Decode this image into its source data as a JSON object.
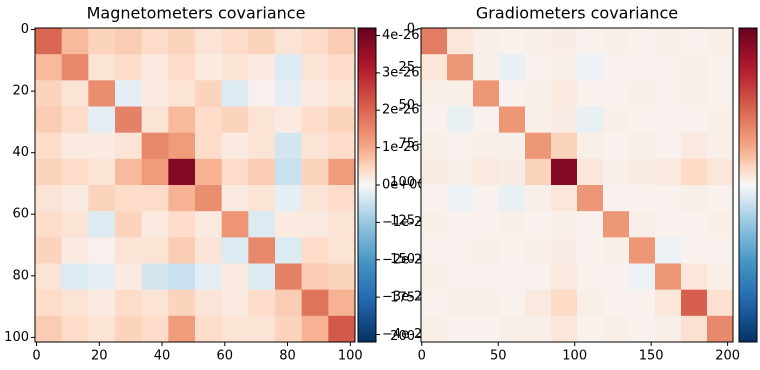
{
  "chart_data": [
    {
      "type": "heatmap",
      "title": "Magnetometers covariance",
      "xlim": [
        -0.5,
        101.5
      ],
      "ylim": [
        101.5,
        -0.5
      ],
      "xticks": [
        0,
        20,
        40,
        60,
        80,
        100
      ],
      "yticks": [
        0,
        20,
        40,
        60,
        80,
        100
      ],
      "clim": [
        -4.2e-26,
        4.2e-26
      ],
      "cticks": [
        {
          "value": 4e-26,
          "label": "4e-26"
        },
        {
          "value": 3e-26,
          "label": "3e-26"
        },
        {
          "value": 2e-26,
          "label": "2e-26"
        },
        {
          "value": 1e-26,
          "label": "1e-26"
        },
        {
          "value": 0,
          "label": "0e+00"
        },
        {
          "value": -1e-26,
          "label": "−1e-26"
        },
        {
          "value": -2e-26,
          "label": "−2e-26"
        },
        {
          "value": -3e-26,
          "label": "−3e-26"
        },
        {
          "value": -4e-26,
          "label": "−4e-26"
        }
      ],
      "colormap": "RdBu_r",
      "matrix": [
        [
          2e-26,
          8e-27,
          5e-27,
          6e-27,
          4e-27,
          5e-27,
          3e-27,
          4e-27,
          5e-27,
          3e-27,
          4e-27,
          6e-27
        ],
        [
          8e-27,
          1.5e-26,
          3e-27,
          4e-27,
          2e-27,
          4e-27,
          2e-27,
          3e-27,
          2e-27,
          -3e-27,
          3e-27,
          4e-27
        ],
        [
          5e-27,
          3e-27,
          1.4e-26,
          -2e-27,
          2e-27,
          3e-27,
          5e-27,
          -3e-27,
          1e-27,
          -2e-27,
          2e-27,
          3e-27
        ],
        [
          6e-27,
          4e-27,
          -2e-27,
          1.6e-26,
          3e-27,
          8e-27,
          4e-27,
          5e-27,
          3e-27,
          2e-27,
          4e-27,
          5e-27
        ],
        [
          4e-27,
          2e-27,
          2e-27,
          3e-27,
          1.5e-26,
          1.2e-26,
          4e-27,
          2e-27,
          3e-27,
          -4e-27,
          3e-27,
          4e-27
        ],
        [
          5e-27,
          4e-27,
          3e-27,
          8e-27,
          1.2e-26,
          3.8e-26,
          9e-27,
          4e-27,
          6e-27,
          -5e-27,
          5e-27,
          1.2e-26
        ],
        [
          3e-27,
          2e-27,
          5e-27,
          4e-27,
          4e-27,
          9e-27,
          1.4e-26,
          2e-27,
          3e-27,
          -2e-27,
          3e-27,
          4e-27
        ],
        [
          4e-27,
          3e-27,
          -3e-27,
          5e-27,
          2e-27,
          4e-27,
          2e-27,
          1.3e-26,
          -3e-27,
          2e-27,
          2e-27,
          3e-27
        ],
        [
          5e-27,
          2e-27,
          1e-27,
          3e-27,
          3e-27,
          6e-27,
          3e-27,
          -3e-27,
          1.5e-26,
          -3e-27,
          4e-27,
          3e-27
        ],
        [
          3e-27,
          -3e-27,
          -2e-27,
          2e-27,
          -4e-27,
          -5e-27,
          -2e-27,
          2e-27,
          -3e-27,
          1.6e-26,
          6e-27,
          5e-27
        ],
        [
          4e-27,
          3e-27,
          2e-27,
          4e-27,
          3e-27,
          5e-27,
          3e-27,
          2e-27,
          4e-27,
          6e-27,
          1.8e-26,
          9e-27
        ],
        [
          6e-27,
          4e-27,
          3e-27,
          5e-27,
          4e-27,
          1.2e-26,
          4e-27,
          3e-27,
          3e-27,
          5e-27,
          9e-27,
          2.2e-26
        ]
      ]
    },
    {
      "type": "heatmap",
      "title": "Gradiometers covariance",
      "xlim": [
        -0.5,
        203.5
      ],
      "ylim": [
        203.5,
        -0.5
      ],
      "xticks": [
        0,
        50,
        100,
        150,
        200
      ],
      "yticks": [
        0,
        25,
        50,
        75,
        100,
        125,
        150,
        175,
        200
      ],
      "clim": [
        -1,
        1
      ],
      "colormap": "RdBu_r",
      "matrix": [
        [
          0.4,
          0.06,
          0.03,
          0.02,
          0.03,
          0.04,
          0.02,
          0.03,
          0.02,
          0.03,
          0.02,
          0.03
        ],
        [
          0.06,
          0.3,
          0.03,
          -0.04,
          0.02,
          0.03,
          -0.03,
          0.02,
          0.02,
          0.02,
          0.03,
          0.02
        ],
        [
          0.03,
          0.03,
          0.3,
          0.02,
          0.03,
          0.05,
          0.02,
          0.02,
          0.03,
          0.02,
          0.03,
          0.02
        ],
        [
          0.02,
          -0.04,
          0.02,
          0.3,
          0.03,
          0.04,
          -0.04,
          0.03,
          0.02,
          0.02,
          0.02,
          0.03
        ],
        [
          0.03,
          0.02,
          0.03,
          0.03,
          0.3,
          0.12,
          0.03,
          0.02,
          0.03,
          0.02,
          0.05,
          0.03
        ],
        [
          0.04,
          0.03,
          0.05,
          0.04,
          0.12,
          0.9,
          0.06,
          0.03,
          0.04,
          0.05,
          0.1,
          0.06
        ],
        [
          0.02,
          -0.03,
          0.02,
          -0.04,
          0.03,
          0.06,
          0.3,
          0.02,
          0.02,
          0.02,
          0.03,
          0.02
        ],
        [
          0.03,
          0.02,
          0.02,
          0.03,
          0.02,
          0.03,
          0.02,
          0.3,
          0.03,
          0.02,
          0.02,
          0.03
        ],
        [
          0.02,
          0.02,
          0.03,
          0.02,
          0.03,
          0.04,
          0.02,
          0.03,
          0.3,
          -0.03,
          0.02,
          0.02
        ],
        [
          0.03,
          0.02,
          0.02,
          0.02,
          0.02,
          0.05,
          0.02,
          0.02,
          -0.03,
          0.3,
          0.06,
          0.03
        ],
        [
          0.02,
          0.03,
          0.03,
          0.02,
          0.05,
          0.1,
          0.03,
          0.02,
          0.02,
          0.06,
          0.5,
          0.08
        ],
        [
          0.03,
          0.02,
          0.02,
          0.03,
          0.03,
          0.06,
          0.02,
          0.03,
          0.02,
          0.03,
          0.08,
          0.35
        ]
      ]
    }
  ]
}
